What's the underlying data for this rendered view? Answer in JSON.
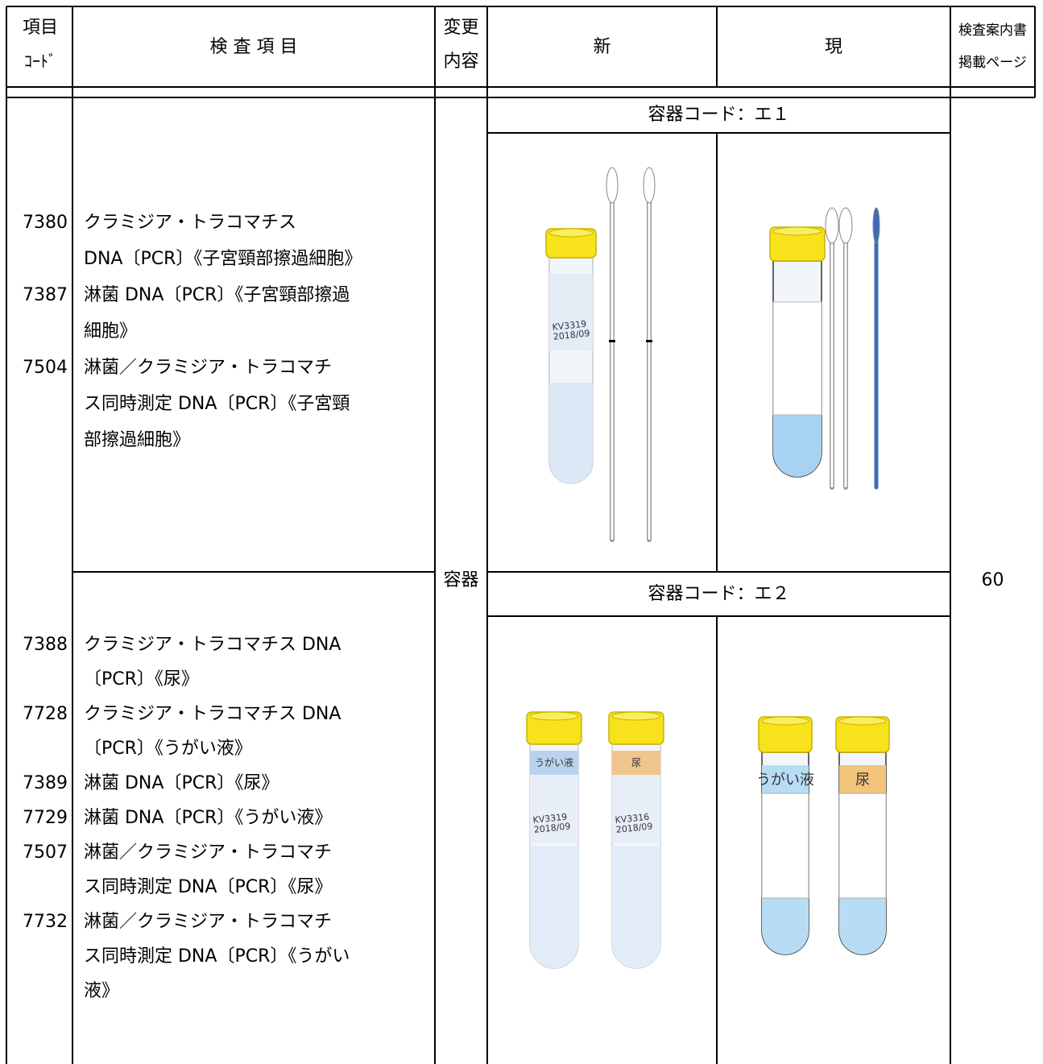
{
  "header": {
    "code": [
      "項目",
      "ｺｰﾄﾞ"
    ],
    "item": "検 査 項 目",
    "change": [
      "変更",
      "内容"
    ],
    "new": "新",
    "current": "現",
    "guide": [
      "検査案内書",
      "掲載ページ"
    ]
  },
  "change": "容器",
  "page": "60",
  "rows": [
    {
      "container_code": "容器コード：エ１",
      "entries": [
        {
          "code": "7380",
          "lines": [
            "クラミジア・トラコマチス",
            "DNA〔PCR〕《子宮頸部擦過細胞》"
          ]
        },
        {
          "code": "7387",
          "lines": [
            "淋菌 DNA〔PCR〕《子宮頸部擦過",
            "細胞》"
          ]
        },
        {
          "code": "7504",
          "lines": [
            "淋菌／クラミジア・トラコマチ",
            "ス同時測定 DNA〔PCR〕《子宮頸",
            "部擦過細胞》"
          ]
        }
      ],
      "new_tube_labels": [
        [
          "KV3319",
          "2018/09"
        ]
      ]
    },
    {
      "container_code": "容器コード：エ２",
      "entries": [
        {
          "code": "7388",
          "lines": [
            "クラミジア・トラコマチス DNA",
            "〔PCR〕《尿》"
          ]
        },
        {
          "code": "7728",
          "lines": [
            "クラミジア・トラコマチス DNA",
            "〔PCR〕《うがい液》"
          ]
        },
        {
          "code": "7389",
          "lines": [
            "淋菌 DNA〔PCR〕《尿》"
          ]
        },
        {
          "code": "7729",
          "lines": [
            "淋菌 DNA〔PCR〕《うがい液》"
          ]
        },
        {
          "code": "7507",
          "lines": [
            "淋菌／クラミジア・トラコマチ",
            "ス同時測定 DNA〔PCR〕《尿》"
          ]
        },
        {
          "code": "7732",
          "lines": [
            "淋菌／クラミジア・トラコマチ",
            "ス同時測定 DNA〔PCR〕《うがい",
            "液》"
          ]
        }
      ],
      "tube_types": [
        "うがい液",
        "尿"
      ],
      "new_tube_labels": [
        [
          "KV3319",
          "2018/09"
        ],
        [
          "KV3316",
          "2018/09"
        ]
      ]
    }
  ]
}
